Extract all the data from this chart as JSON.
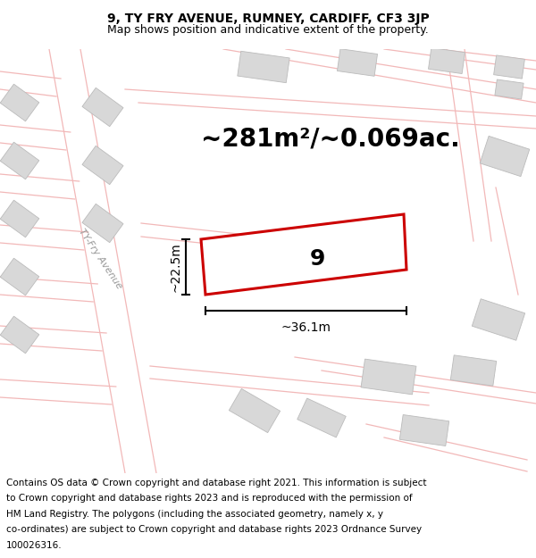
{
  "title_line1": "9, TY FRY AVENUE, RUMNEY, CARDIFF, CF3 3JP",
  "title_line2": "Map shows position and indicative extent of the property.",
  "area_label": "~281m²/~0.069ac.",
  "number_label": "9",
  "width_label": "~36.1m",
  "height_label": "~22.5m",
  "map_bg": "#ffffff",
  "building_color": "#d8d8d8",
  "building_edge": "#bbbbbb",
  "highlight_color": "#cc0000",
  "road_color": "#f2b8b8",
  "street_label": "TY-Fry Avenue",
  "title_fontsize": 10,
  "subtitle_fontsize": 9,
  "footer_fontsize": 7.5,
  "area_fontsize": 20,
  "number_fontsize": 18,
  "dim_fontsize": 10,
  "street_fontsize": 8,
  "footer_lines": [
    "Contains OS data © Crown copyright and database right 2021. This information is subject",
    "to Crown copyright and database rights 2023 and is reproduced with the permission of",
    "HM Land Registry. The polygons (including the associated geometry, namely x, y",
    "co-ordinates) are subject to Crown copyright and database rights 2023 Ordnance Survey",
    "100026316."
  ]
}
